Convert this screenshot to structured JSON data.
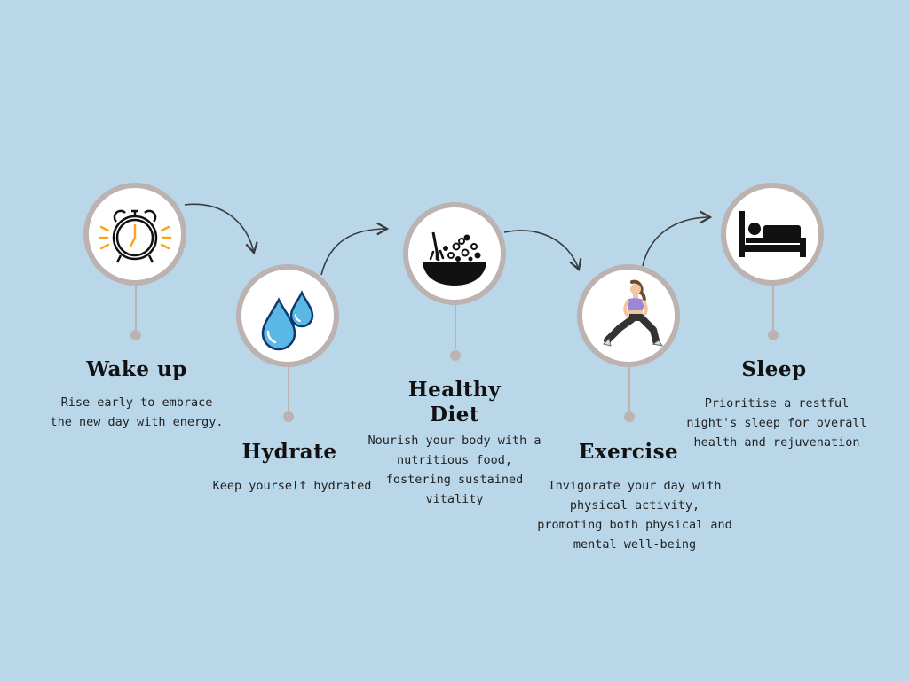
{
  "steps": [
    {
      "title": "Wake up",
      "description": "Rise early to embrace the new day with energy.",
      "icon": "alarm-clock-icon"
    },
    {
      "title": "Hydrate",
      "description": "Keep yourself hydrated",
      "icon": "water-drops-icon"
    },
    {
      "title": "Healthy Diet",
      "description": "Nourish your body with a nutritious food, fostering sustained vitality",
      "icon": "food-bowl-icon"
    },
    {
      "title": "Exercise",
      "description": "Invigorate your day with physical activity, promoting both physical and mental well-being",
      "icon": "exercise-woman-icon"
    },
    {
      "title": "Sleep",
      "description": "Prioritise a restful night's sleep for overall health and rejuvenation",
      "icon": "bed-sleep-icon"
    }
  ],
  "colors": {
    "background": "#b9d7e9",
    "ring": "#bcb2b0",
    "connector_arrow": "#3b3b3b",
    "clock_rays": "#f5a623",
    "water_drop": "#5bb8e6",
    "workout_top": "#9b87d8"
  }
}
